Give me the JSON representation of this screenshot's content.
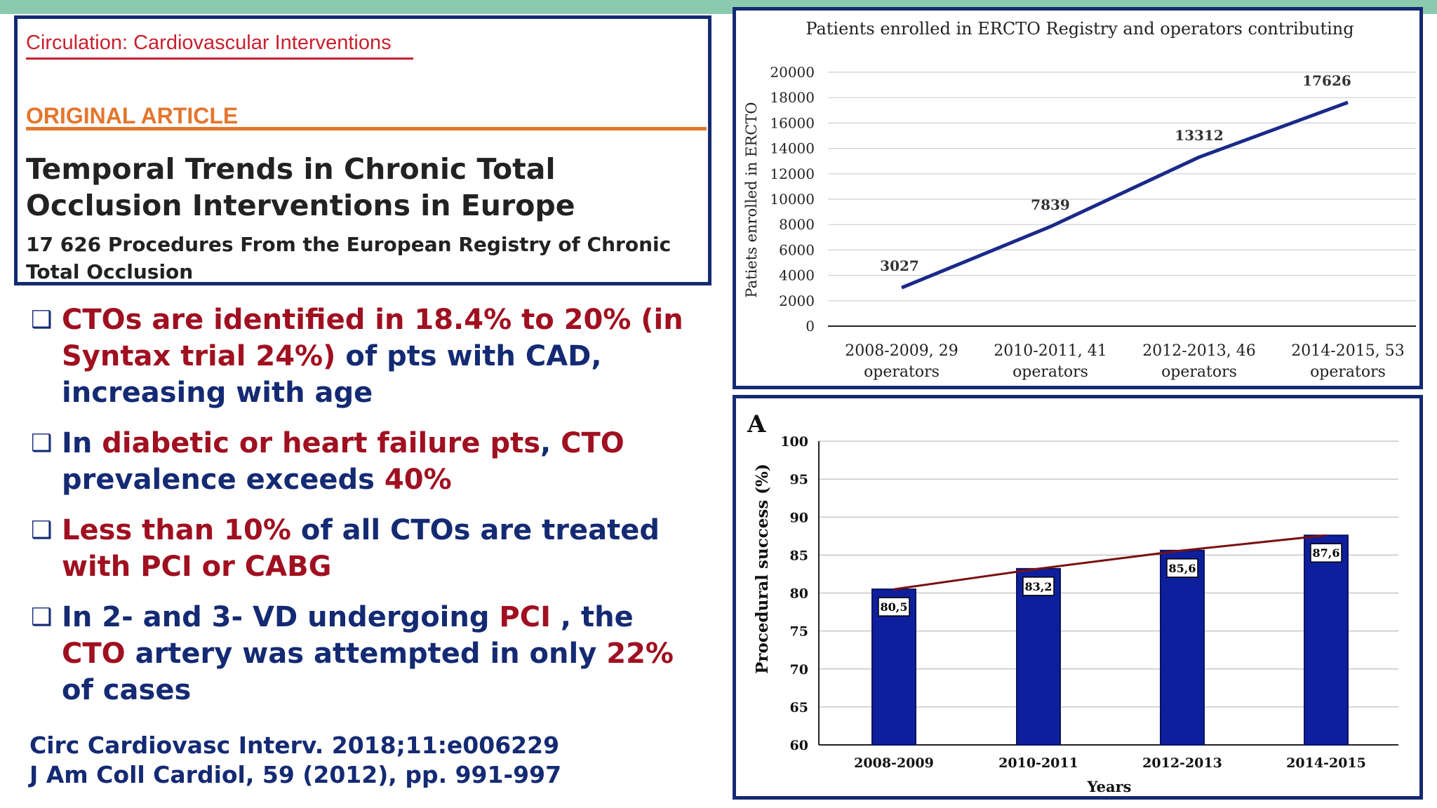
{
  "article": {
    "journal": "Circulation: Cardiovascular Interventions",
    "section": "ORIGINAL ARTICLE",
    "title": "Temporal Trends in Chronic Total Occlusion Interventions in Europe",
    "subtitle": "17 626 Procedures From the European Registry of Chronic Total Occlusion"
  },
  "bullets": [
    {
      "parts": [
        {
          "t": "CTOs are identified in 18.4% to 20% (in Syntax trial 24%)",
          "red": true
        },
        {
          "t": " of pts with CAD, increasing with age",
          "red": false
        }
      ]
    },
    {
      "parts": [
        {
          "t": "In ",
          "red": false
        },
        {
          "t": "diabetic or heart failure pts",
          "red": true
        },
        {
          "t": ", ",
          "red": false
        },
        {
          "t": "CTO",
          "red": true
        },
        {
          "t": " prevalence exceeds ",
          "red": false
        },
        {
          "t": "40%",
          "red": true
        }
      ]
    },
    {
      "parts": [
        {
          "t": "Less than 10%",
          "red": true
        },
        {
          "t": " of all CTOs are treated ",
          "red": false
        },
        {
          "t": "with PCI or CABG",
          "red": true
        }
      ]
    },
    {
      "parts": [
        {
          "t": "In 2- and 3- VD undergoing ",
          "red": false
        },
        {
          "t": "PCI",
          "red": true
        },
        {
          "t": " , the ",
          "red": false
        },
        {
          "t": "CTO",
          "red": true
        },
        {
          "t": " artery was attempted in only ",
          "red": false
        },
        {
          "t": "22%",
          "red": true
        },
        {
          "t": " of cases",
          "red": false
        }
      ]
    }
  ],
  "references": [
    "Circ Cardiovasc Interv. 2018;11:e006229",
    "J Am Coll Cardiol, 59 (2012), pp. 991-997"
  ],
  "colors": {
    "navy": "#142a73",
    "red": "#a01020",
    "line": "#1a2a8a",
    "bar": "#0d1f9c",
    "trend": "#7a1010"
  },
  "chart_data": [
    {
      "type": "line",
      "title": "Patients enrolled in ERCTO Registry and operators contributing",
      "ylabel": "Patiets enrolled in ERCTO",
      "xlabel": "",
      "categories": [
        [
          "2008-2009, 29",
          "operators"
        ],
        [
          "2010-2011, 41",
          "operators"
        ],
        [
          "2012-2013, 46",
          "operators"
        ],
        [
          "2014-2015, 53",
          "operators"
        ]
      ],
      "values": [
        3027,
        7839,
        13312,
        17626
      ],
      "ylim": [
        0,
        20000
      ],
      "yticks": [
        0,
        2000,
        4000,
        6000,
        8000,
        10000,
        12000,
        14000,
        16000,
        18000,
        20000
      ],
      "grid": true
    },
    {
      "type": "bar",
      "panel_label": "A",
      "title": "",
      "ylabel": "Procedural success (%)",
      "xlabel": "Years",
      "categories": [
        "2008-2009",
        "2010-2011",
        "2012-2013",
        "2014-2015"
      ],
      "values": [
        80.5,
        83.2,
        85.6,
        87.6
      ],
      "value_labels": [
        "80,5",
        "83,2",
        "85,6",
        "87,6"
      ],
      "ylim": [
        60,
        100
      ],
      "yticks": [
        60,
        65,
        70,
        75,
        80,
        85,
        90,
        95,
        100
      ],
      "grid": true,
      "trendline": true
    }
  ]
}
